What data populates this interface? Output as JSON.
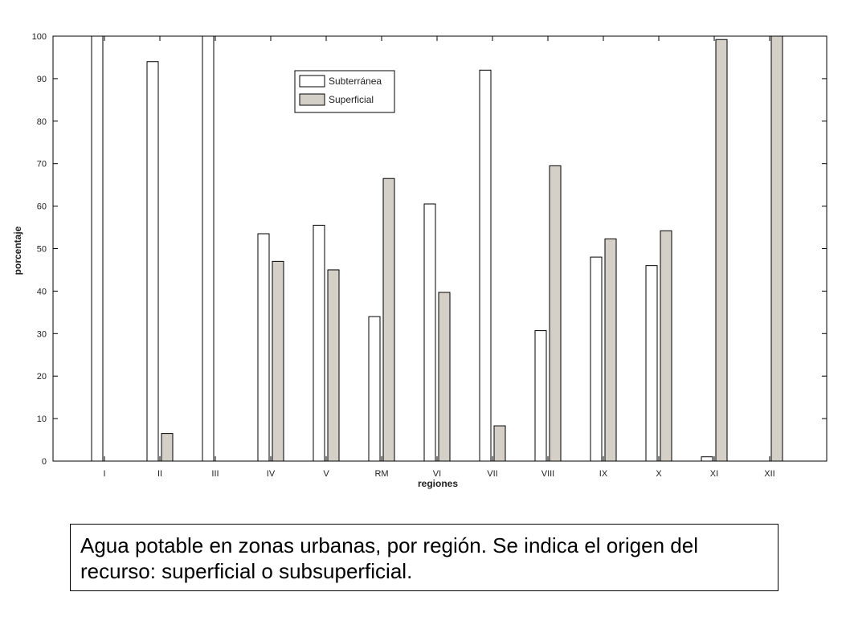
{
  "chart_data": {
    "type": "bar",
    "title": "",
    "xlabel": "regiones",
    "ylabel": "porcentaje",
    "ylim": [
      0,
      100
    ],
    "yticks": [
      0,
      10,
      20,
      30,
      40,
      50,
      60,
      70,
      80,
      90,
      100
    ],
    "categories": [
      "I",
      "II",
      "III",
      "IV",
      "V",
      "RM",
      "VI",
      "VII",
      "VIII",
      "IX",
      "X",
      "XI",
      "XII"
    ],
    "series": [
      {
        "name": "Subterránea",
        "color": "#ffffff",
        "values": [
          100,
          94,
          100,
          53.5,
          55.5,
          34,
          60.5,
          92,
          30.7,
          48,
          46,
          1,
          0
        ]
      },
      {
        "name": "Superficial",
        "color": "#d4d0c8",
        "values": [
          0,
          6.5,
          0,
          47,
          45,
          66.5,
          39.7,
          8.3,
          69.5,
          52.3,
          54.2,
          99.2,
          100
        ]
      }
    ],
    "legend_position": "top-center",
    "grid": false
  },
  "caption": "Agua potable en zonas urbanas, por región. Se indica el origen del recurso: superficial o subsuperficial."
}
